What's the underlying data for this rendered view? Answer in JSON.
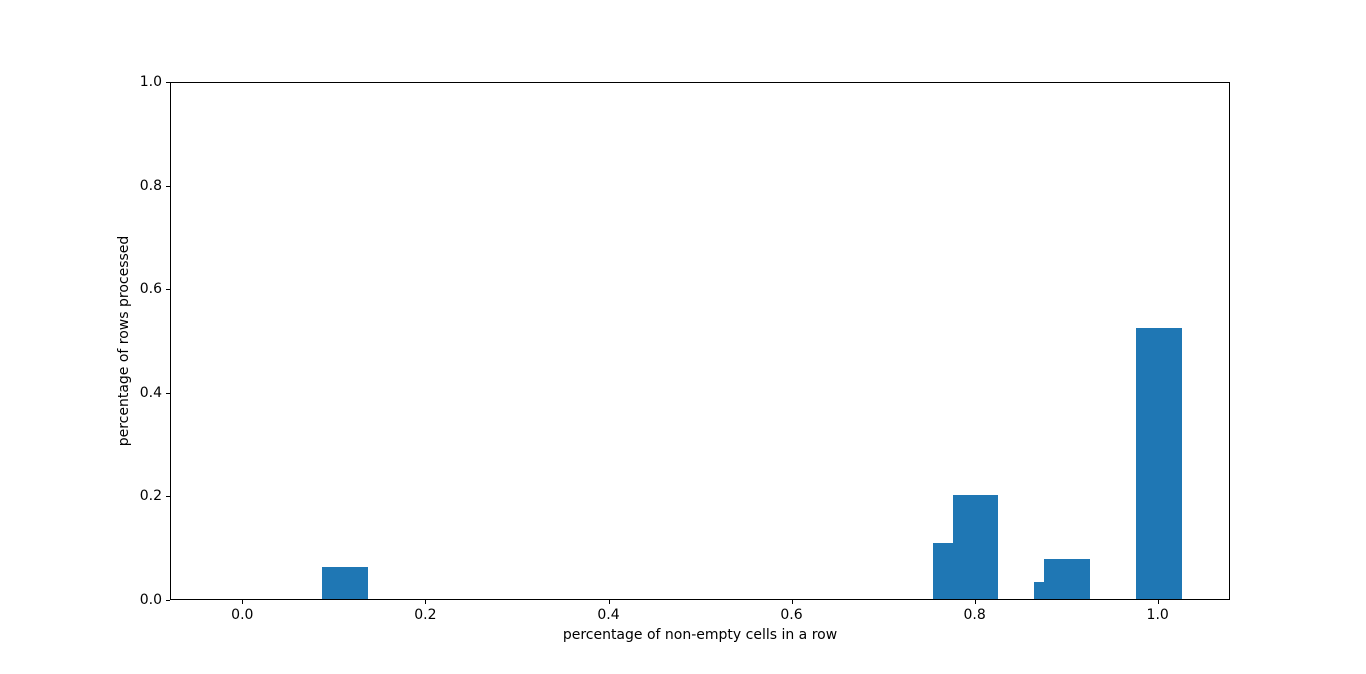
{
  "figure": {
    "background": "#ffffff",
    "text_color": "#000000",
    "frame_color": "#000000"
  },
  "chart_data": {
    "type": "bar",
    "title": "",
    "xlabel": "percentage of non-empty cells in a row",
    "ylabel": "percentage of rows processed",
    "bar_color": "#1f77b4",
    "bar_width": 0.05,
    "xlim": [
      -0.079,
      1.079
    ],
    "ylim": [
      0,
      1.0
    ],
    "grid": false,
    "legend": null,
    "x_ticks": [
      0.0,
      0.2,
      0.4,
      0.6,
      0.8,
      1.0
    ],
    "x_tick_labels": [
      "0.0",
      "0.2",
      "0.4",
      "0.6",
      "0.8",
      "1.0"
    ],
    "y_ticks": [
      0.0,
      0.2,
      0.4,
      0.6,
      0.8,
      1.0
    ],
    "y_tick_labels": [
      "0.0",
      "0.2",
      "0.4",
      "0.6",
      "0.8",
      "1.0"
    ],
    "bars": [
      {
        "x": 0.111,
        "value": 0.061
      },
      {
        "x": 0.778,
        "value": 0.109
      },
      {
        "x": 0.8,
        "value": 0.201
      },
      {
        "x": 0.889,
        "value": 0.032
      },
      {
        "x": 0.9,
        "value": 0.077
      },
      {
        "x": 1.0,
        "value": 0.524
      }
    ]
  }
}
